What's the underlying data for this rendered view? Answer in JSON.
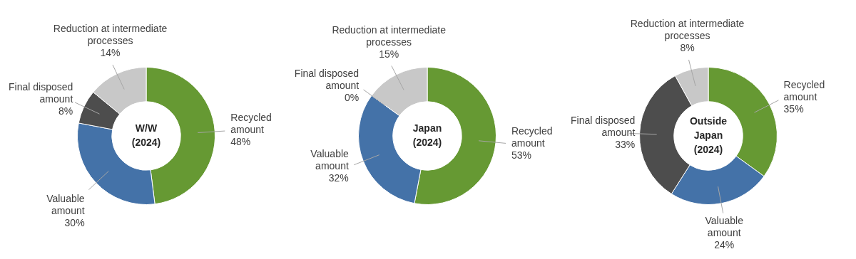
{
  "chart_data": [
    {
      "type": "donut",
      "title": "W/W (2024)",
      "categories": [
        "Recycled amount",
        "Valuable amount",
        "Final disposed amount",
        "Reduction at intermediate processes"
      ],
      "values": [
        48,
        30,
        8,
        14
      ],
      "value_labels": [
        "48%",
        "30%",
        "8%",
        "14%"
      ],
      "colors": [
        "#669933",
        "#4472a8",
        "#4d4d4d",
        "#c8c8c8"
      ],
      "legend": false
    },
    {
      "type": "donut",
      "title": "Japan (2024)",
      "categories": [
        "Recycled amount",
        "Valuable amount",
        "Final disposed amount",
        "Reduction at intermediate processes"
      ],
      "values": [
        53,
        32,
        0,
        15
      ],
      "value_labels": [
        "53%",
        "32%",
        "0%",
        "15%"
      ],
      "colors": [
        "#669933",
        "#4472a8",
        "#4d4d4d",
        "#c8c8c8"
      ],
      "legend": false
    },
    {
      "type": "donut",
      "title": "Outside Japan (2024)",
      "categories": [
        "Recycled amount",
        "Valuable amount",
        "Final disposed amount",
        "Reduction at intermediate processes"
      ],
      "values": [
        35,
        24,
        33,
        8
      ],
      "value_labels": [
        "35%",
        "24%",
        "33%",
        "8%"
      ],
      "colors": [
        "#669933",
        "#4472a8",
        "#4d4d4d",
        "#c8c8c8"
      ],
      "legend": false
    }
  ]
}
